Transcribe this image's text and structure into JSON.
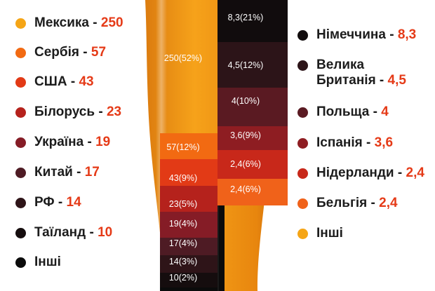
{
  "chart_data": {
    "type": "stacked-bar-infographic",
    "title": "",
    "series": [
      {
        "name": "left",
        "items": [
          {
            "label": "Мексика",
            "value": "250",
            "pct": "250(52%)",
            "share": 52,
            "color": "#f5a516"
          },
          {
            "label": "Сербія",
            "value": "57",
            "pct": "57(12%)",
            "share": 12,
            "color": "#f26a12"
          },
          {
            "label": "США",
            "value": "43",
            "pct": "43(9%)",
            "share": 9,
            "color": "#e23a16"
          },
          {
            "label": "Білорусь",
            "value": "23",
            "pct": "23(5%)",
            "share": 5,
            "color": "#b5221c"
          },
          {
            "label": "Україна",
            "value": "19",
            "pct": "19(4%)",
            "share": 4,
            "color": "#851c26"
          },
          {
            "label": "Китай",
            "value": "17",
            "pct": "17(4%)",
            "share": 4,
            "color": "#4e1b24"
          },
          {
            "label": "РФ",
            "value": "14",
            "pct": "14(3%)",
            "share": 3,
            "color": "#2e1418"
          },
          {
            "label": "Таїланд",
            "value": "10",
            "pct": "10(2%)",
            "share": 2,
            "color": "#150d0e"
          },
          {
            "label": "Інші",
            "value": "",
            "pct": "",
            "share": 9,
            "color": "#0b0b0b"
          }
        ]
      },
      {
        "name": "right",
        "items": [
          {
            "label": "Німеччина",
            "value": "8,3",
            "pct": "8,3(21%)",
            "share": 21,
            "color": "#110c0d"
          },
          {
            "label": "Велика\nБританія",
            "value": "4,5",
            "pct": "4,5(12%)",
            "share": 12,
            "color": "#2c1418"
          },
          {
            "label": "Польща",
            "value": "4",
            "pct": "4(10%)",
            "share": 10,
            "color": "#5a1a22"
          },
          {
            "label": "Іспанія",
            "value": "3,6",
            "pct": "3,6(9%)",
            "share": 9,
            "color": "#8e1d22"
          },
          {
            "label": "Нідерланди",
            "value": "2,4",
            "pct": "2,4(6%)",
            "share": 6,
            "color": "#c8281a"
          },
          {
            "label": "Бельгія",
            "value": "2,4",
            "pct": "2,4(6%)",
            "share": 6,
            "color": "#f0621a"
          },
          {
            "label": "Інші",
            "value": "",
            "pct": "",
            "share": 36,
            "color": "#f5a516"
          }
        ]
      }
    ]
  }
}
